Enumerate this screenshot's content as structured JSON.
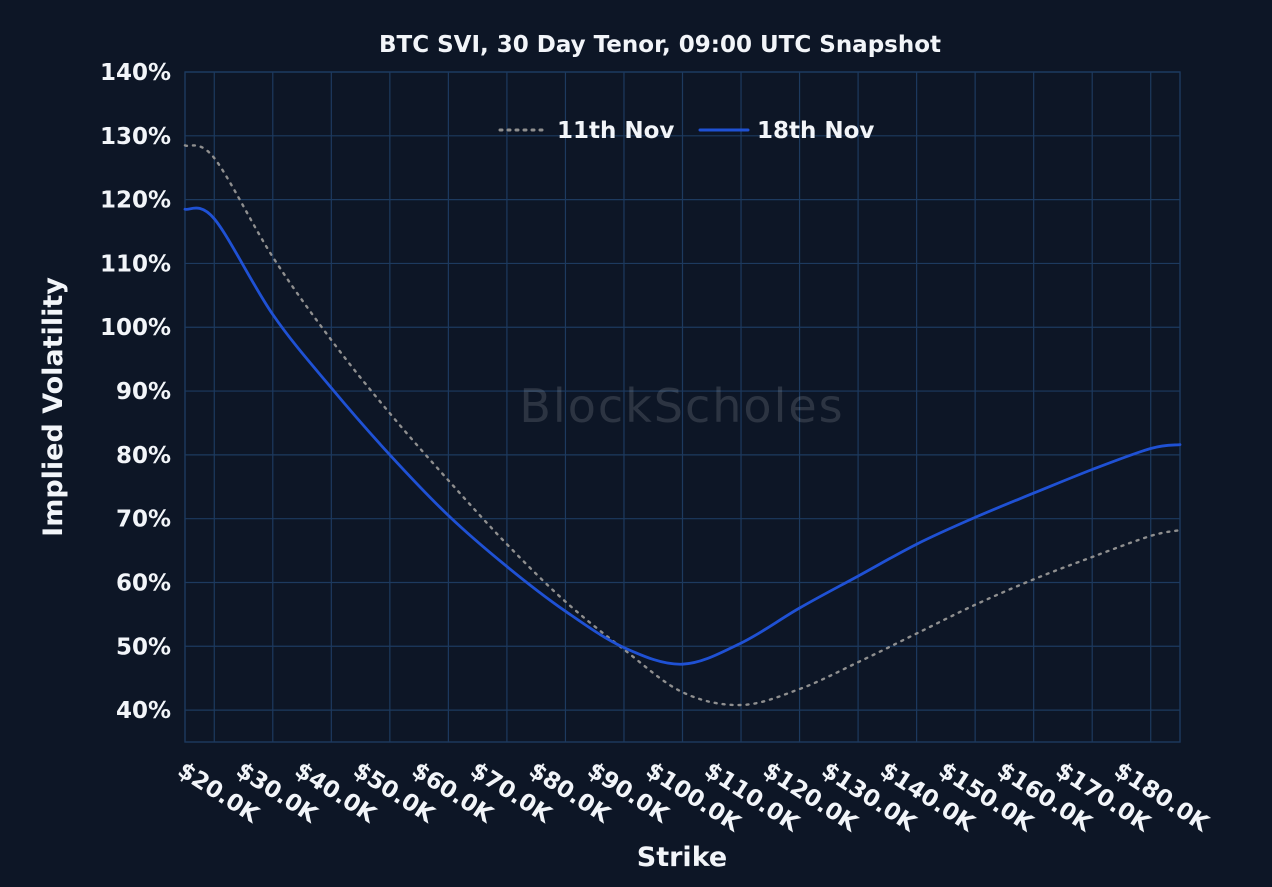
{
  "page": {
    "background": "#0d1626"
  },
  "chart_data": {
    "type": "line",
    "title": "BTC SVI, 30 Day Tenor, 09:00 UTC Snapshot",
    "xlabel": "Strike",
    "ylabel": "Implied Volatility",
    "watermark": "BlockScholes",
    "grid": true,
    "legend_position": "top-center",
    "x_range": [
      15,
      185
    ],
    "y_range": [
      35,
      140
    ],
    "x_ticks": [
      20,
      30,
      40,
      50,
      60,
      70,
      80,
      90,
      100,
      110,
      120,
      130,
      140,
      150,
      160,
      170,
      180
    ],
    "x_tick_labels": [
      "$20.0K",
      "$30.0K",
      "$40.0K",
      "$50.0K",
      "$60.0K",
      "$70.0K",
      "$80.0K",
      "$90.0K",
      "$100.0K",
      "$110.0K",
      "$120.0K",
      "$130.0K",
      "$140.0K",
      "$150.0K",
      "$160.0K",
      "$170.0K",
      "$180.0K"
    ],
    "y_ticks": [
      40,
      50,
      60,
      70,
      80,
      90,
      100,
      110,
      120,
      130,
      140
    ],
    "y_tick_labels": [
      "40%",
      "50%",
      "60%",
      "70%",
      "80%",
      "90%",
      "100%",
      "110%",
      "120%",
      "130%",
      "140%"
    ],
    "colors": {
      "background": "#0d1626",
      "grid": "#1d3a5f",
      "text": "#f2f5f9"
    },
    "x": [
      15,
      20,
      30,
      40,
      50,
      60,
      70,
      80,
      90,
      100,
      110,
      120,
      130,
      140,
      150,
      160,
      170,
      180,
      185
    ],
    "series": [
      {
        "name": "11th Nov",
        "color": "#8f8f8f",
        "line_style": "dotted",
        "values": [
          128.5,
          126.5,
          111,
          98,
          86.5,
          76,
          66,
          57,
          49.5,
          42.8,
          40.8,
          43.3,
          47.5,
          52,
          56.5,
          60.5,
          64,
          67.3,
          68.2
        ]
      },
      {
        "name": "18th Nov",
        "color": "#1f51d4",
        "line_style": "solid",
        "values": [
          118.5,
          117,
          102,
          90.5,
          80,
          70.5,
          62.5,
          55.5,
          49.8,
          47.2,
          50.5,
          56,
          61,
          66,
          70.2,
          74,
          77.7,
          81,
          81.6
        ]
      }
    ]
  }
}
